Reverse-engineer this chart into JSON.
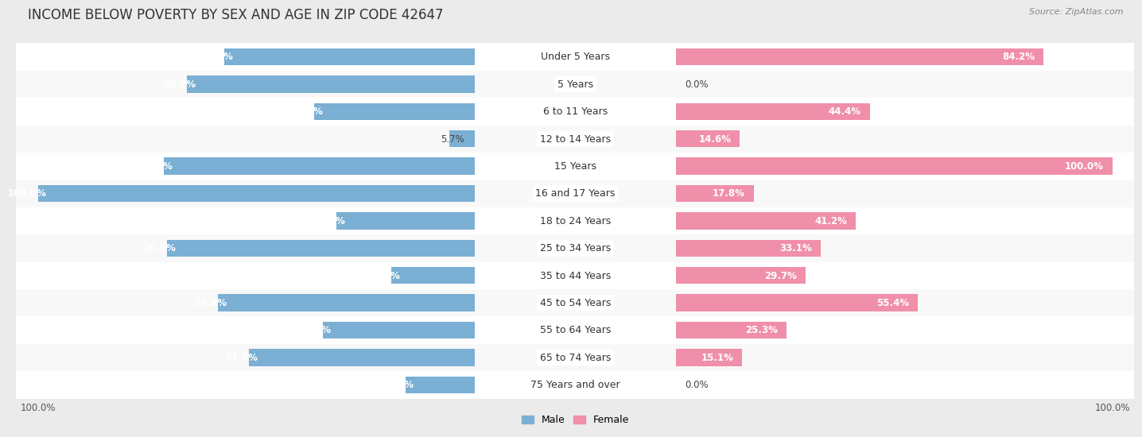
{
  "title": "INCOME BELOW POVERTY BY SEX AND AGE IN ZIP CODE 42647",
  "source": "Source: ZipAtlas.com",
  "categories": [
    "Under 5 Years",
    "5 Years",
    "6 to 11 Years",
    "12 to 14 Years",
    "15 Years",
    "16 and 17 Years",
    "18 to 24 Years",
    "25 to 34 Years",
    "35 to 44 Years",
    "45 to 54 Years",
    "55 to 64 Years",
    "65 to 74 Years",
    "75 Years and over"
  ],
  "male": [
    57.3,
    65.9,
    36.7,
    5.7,
    71.2,
    100.0,
    31.6,
    70.5,
    19.0,
    58.8,
    34.8,
    51.7,
    15.8
  ],
  "female": [
    84.2,
    0.0,
    44.4,
    14.6,
    100.0,
    17.8,
    41.2,
    33.1,
    29.7,
    55.4,
    25.3,
    15.1,
    0.0
  ],
  "male_color": "#7bafd4",
  "female_color": "#f08faa",
  "male_label": "Male",
  "female_label": "Female",
  "bg_odd": "#ebebeb",
  "bg_even": "#f8f8f8",
  "bar_bg": "#ffffff",
  "label_bg": "#ffffff",
  "axis_max": 100,
  "title_fontsize": 12,
  "cat_fontsize": 9,
  "val_fontsize": 8.5,
  "tick_fontsize": 8.5,
  "source_fontsize": 8
}
